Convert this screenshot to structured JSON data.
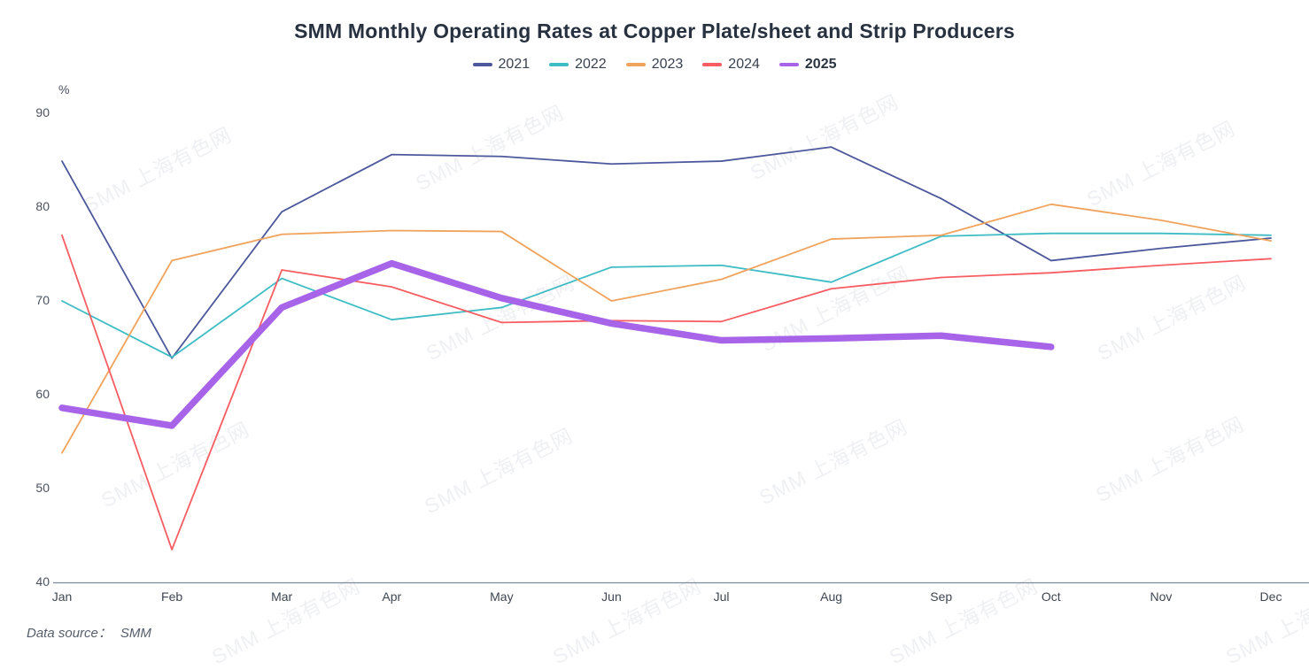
{
  "chart_data": {
    "type": "line",
    "title": "SMM Monthly Operating Rates at Copper Plate/sheet and Strip Producers",
    "unit_label": "%",
    "categories": [
      "Jan",
      "Feb",
      "Mar",
      "Apr",
      "May",
      "Jun",
      "Jul",
      "Aug",
      "Sep",
      "Oct",
      "Nov",
      "Dec"
    ],
    "y_ticks": [
      90,
      80,
      70,
      60,
      50,
      40
    ],
    "ylim": [
      40,
      90
    ],
    "grid": false,
    "legend_position": "top",
    "axis_line_color": "#7E8899",
    "series": [
      {
        "name": "2021",
        "color": "#4C589C",
        "thick": false,
        "bold": false,
        "values": [
          84.9,
          63.9,
          79.5,
          85.6,
          85.4,
          84.6,
          84.9,
          86.4,
          80.9,
          74.3,
          75.6,
          76.7
        ]
      },
      {
        "name": "2022",
        "color": "#3DBCC4",
        "thick": false,
        "bold": false,
        "values": [
          70.0,
          64.0,
          72.4,
          68.0,
          69.3,
          73.6,
          73.8,
          72.0,
          76.9,
          77.2,
          77.2,
          77.0
        ]
      },
      {
        "name": "2023",
        "color": "#F0A35C",
        "thick": false,
        "bold": false,
        "values": [
          53.8,
          74.3,
          77.1,
          77.5,
          77.4,
          70.0,
          72.3,
          76.6,
          77.0,
          80.3,
          78.6,
          76.4
        ]
      },
      {
        "name": "2024",
        "color": "#F75D62",
        "thick": false,
        "bold": false,
        "values": [
          77.0,
          43.5,
          73.3,
          71.5,
          67.7,
          67.9,
          67.8,
          71.3,
          72.5,
          73.0,
          73.8,
          74.5
        ]
      },
      {
        "name": "2025",
        "color": "#A764E8",
        "thick": true,
        "bold": true,
        "values": [
          58.6,
          56.7,
          69.3,
          74.0,
          70.3,
          67.6,
          65.8,
          66.0,
          66.3,
          65.1
        ]
      }
    ]
  },
  "watermark": {
    "text": "SMM 上海有色网"
  },
  "footer": {
    "label": "Data source：",
    "value": "SMM"
  }
}
